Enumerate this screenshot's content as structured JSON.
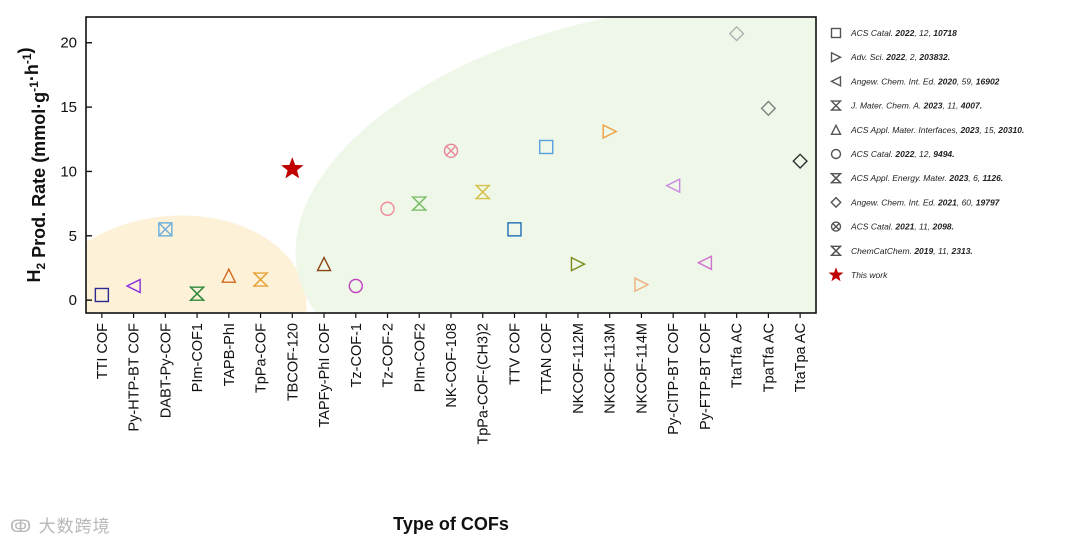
{
  "chart_data": {
    "type": "scatter",
    "xlabel": "Type of COFs",
    "ylabel": "H₂ Prod. Rate (mmol·g⁻¹·h⁻¹)",
    "ylim": [
      -1,
      22
    ],
    "yticks": [
      0,
      5,
      10,
      15,
      20
    ],
    "categories": [
      "TTI COF",
      "Py-HTP-BT COF",
      "DABT-Py-COF",
      "PIm-COF1",
      "TAPB-PhI",
      "TpPa-COF",
      "TBCOF-120",
      "TAPFy-PhI COF",
      "Tz-COF-1",
      "Tz-COF-2",
      "PIm-COF2",
      "NK-COF-108",
      "TpPa-COF-(CH3)2",
      "TTV COF",
      "TTAN COF",
      "NKCOF-112M",
      "NKCOF-113M",
      "NKCOF-114M",
      "Py-ClTP-BT COF",
      "Py-FTP-BT COF",
      "TtaTfa AC",
      "TpaTfa AC",
      "TtaTpa AC"
    ],
    "points": [
      {
        "category": "TTI COF",
        "y": 0.4,
        "marker": "square",
        "color": "#2b2b8f"
      },
      {
        "category": "Py-HTP-BT COF",
        "y": 1.1,
        "marker": "tri-left",
        "color": "#8a2be2"
      },
      {
        "category": "DABT-Py-COF",
        "y": 5.5,
        "marker": "square-x",
        "color": "#6aaee0"
      },
      {
        "category": "PIm-COF1",
        "y": 0.5,
        "marker": "hourglass-x",
        "color": "#2e8b3d"
      },
      {
        "category": "TAPB-PhI",
        "y": 1.9,
        "marker": "tri-up",
        "color": "#d2691e"
      },
      {
        "category": "TpPa-COF",
        "y": 1.6,
        "marker": "hourglass-x",
        "color": "#e8a33a"
      },
      {
        "category": "TBCOF-120",
        "y": 10.2,
        "marker": "star",
        "color": "#c00000"
      },
      {
        "category": "TAPFy-PhI COF",
        "y": 2.8,
        "marker": "tri-up",
        "color": "#8b4513"
      },
      {
        "category": "Tz-COF-1",
        "y": 1.1,
        "marker": "circle",
        "color": "#c03fc0"
      },
      {
        "category": "Tz-COF-2",
        "y": 7.1,
        "marker": "circle",
        "color": "#f08a9a"
      },
      {
        "category": "PIm-COF2",
        "y": 7.5,
        "marker": "hourglass-x",
        "color": "#7dbf6a"
      },
      {
        "category": "NK-COF-108",
        "y": 11.6,
        "marker": "circle-x",
        "color": "#e8869a"
      },
      {
        "category": "TpPa-COF-(CH3)2",
        "y": 8.4,
        "marker": "hourglass-x",
        "color": "#d8c24a"
      },
      {
        "category": "TTV COF",
        "y": 5.5,
        "marker": "square",
        "color": "#1f6fb5"
      },
      {
        "category": "TTAN COF",
        "y": 11.9,
        "marker": "square",
        "color": "#5aa0e0"
      },
      {
        "category": "NKCOF-112M",
        "y": 2.8,
        "marker": "tri-right",
        "color": "#7a8a1a"
      },
      {
        "category": "NKCOF-113M",
        "y": 13.1,
        "marker": "tri-right",
        "color": "#f0a040"
      },
      {
        "category": "NKCOF-114M",
        "y": 1.2,
        "marker": "tri-right",
        "color": "#f0b080"
      },
      {
        "category": "Py-ClTP-BT COF",
        "y": 8.9,
        "marker": "tri-left",
        "color": "#c888e0"
      },
      {
        "category": "Py-FTP-BT COF",
        "y": 2.9,
        "marker": "tri-left",
        "color": "#d070d0"
      },
      {
        "category": "TtaTfa AC",
        "y": 20.7,
        "marker": "diamond",
        "color": "#b0b0b0"
      },
      {
        "category": "TpaTfa AC",
        "y": 14.9,
        "marker": "diamond",
        "color": "#808080"
      },
      {
        "category": "TtaTpa AC",
        "y": 10.8,
        "marker": "diamond",
        "color": "#303030"
      }
    ],
    "legend": [
      {
        "marker": "square",
        "pre": "ACS Catal. ",
        "bold": "2022",
        "post": ", 12, ",
        "bold2": "10718"
      },
      {
        "marker": "tri-right",
        "pre": "Adv. Sci. ",
        "bold": "2022",
        "post": ", 2, ",
        "bold2": "203832."
      },
      {
        "marker": "tri-left",
        "pre": "Angew. Chem. Int. Ed. ",
        "bold": "2020",
        "post": ", 59, ",
        "bold2": "16902"
      },
      {
        "marker": "hourglass",
        "pre": "J. Mater. Chem. A. ",
        "bold": "2023",
        "post": ", 11, ",
        "bold2": "4007."
      },
      {
        "marker": "tri-up",
        "pre": "ACS Appl. Mater. Interfaces, ",
        "bold": "2023",
        "post": ", 15, ",
        "bold2": "20310."
      },
      {
        "marker": "circle",
        "pre": "ACS Catal. ",
        "bold": "2022",
        "post": ", 12, ",
        "bold2": "9494."
      },
      {
        "marker": "hourglass-x",
        "pre": "ACS Appl. Energy. Mater. ",
        "bold": "2023",
        "post": ", 6, ",
        "bold2": "1126."
      },
      {
        "marker": "diamond",
        "pre": "Angew. Chem. Int. Ed. ",
        "bold": "2021",
        "post": ", 60, ",
        "bold2": "19797"
      },
      {
        "marker": "circle-x",
        "pre": "ACS Catal. ",
        "bold": "2021",
        "post": ", 11, ",
        "bold2": "2098."
      },
      {
        "marker": "hourglass-x",
        "pre": "ChemCatChem. ",
        "bold": "2019",
        "post": ", 11, ",
        "bold2": "2313."
      },
      {
        "marker": "star",
        "pre": "This work",
        "bold": "",
        "post": "",
        "bold2": ""
      }
    ],
    "shaded_regions": [
      {
        "color": "#fdf1d8",
        "label": ""
      },
      {
        "color": "#eef7e8",
        "label": ""
      }
    ],
    "grid": false,
    "legend_position": "right-outside"
  },
  "watermark": {
    "text": "大数跨境"
  }
}
